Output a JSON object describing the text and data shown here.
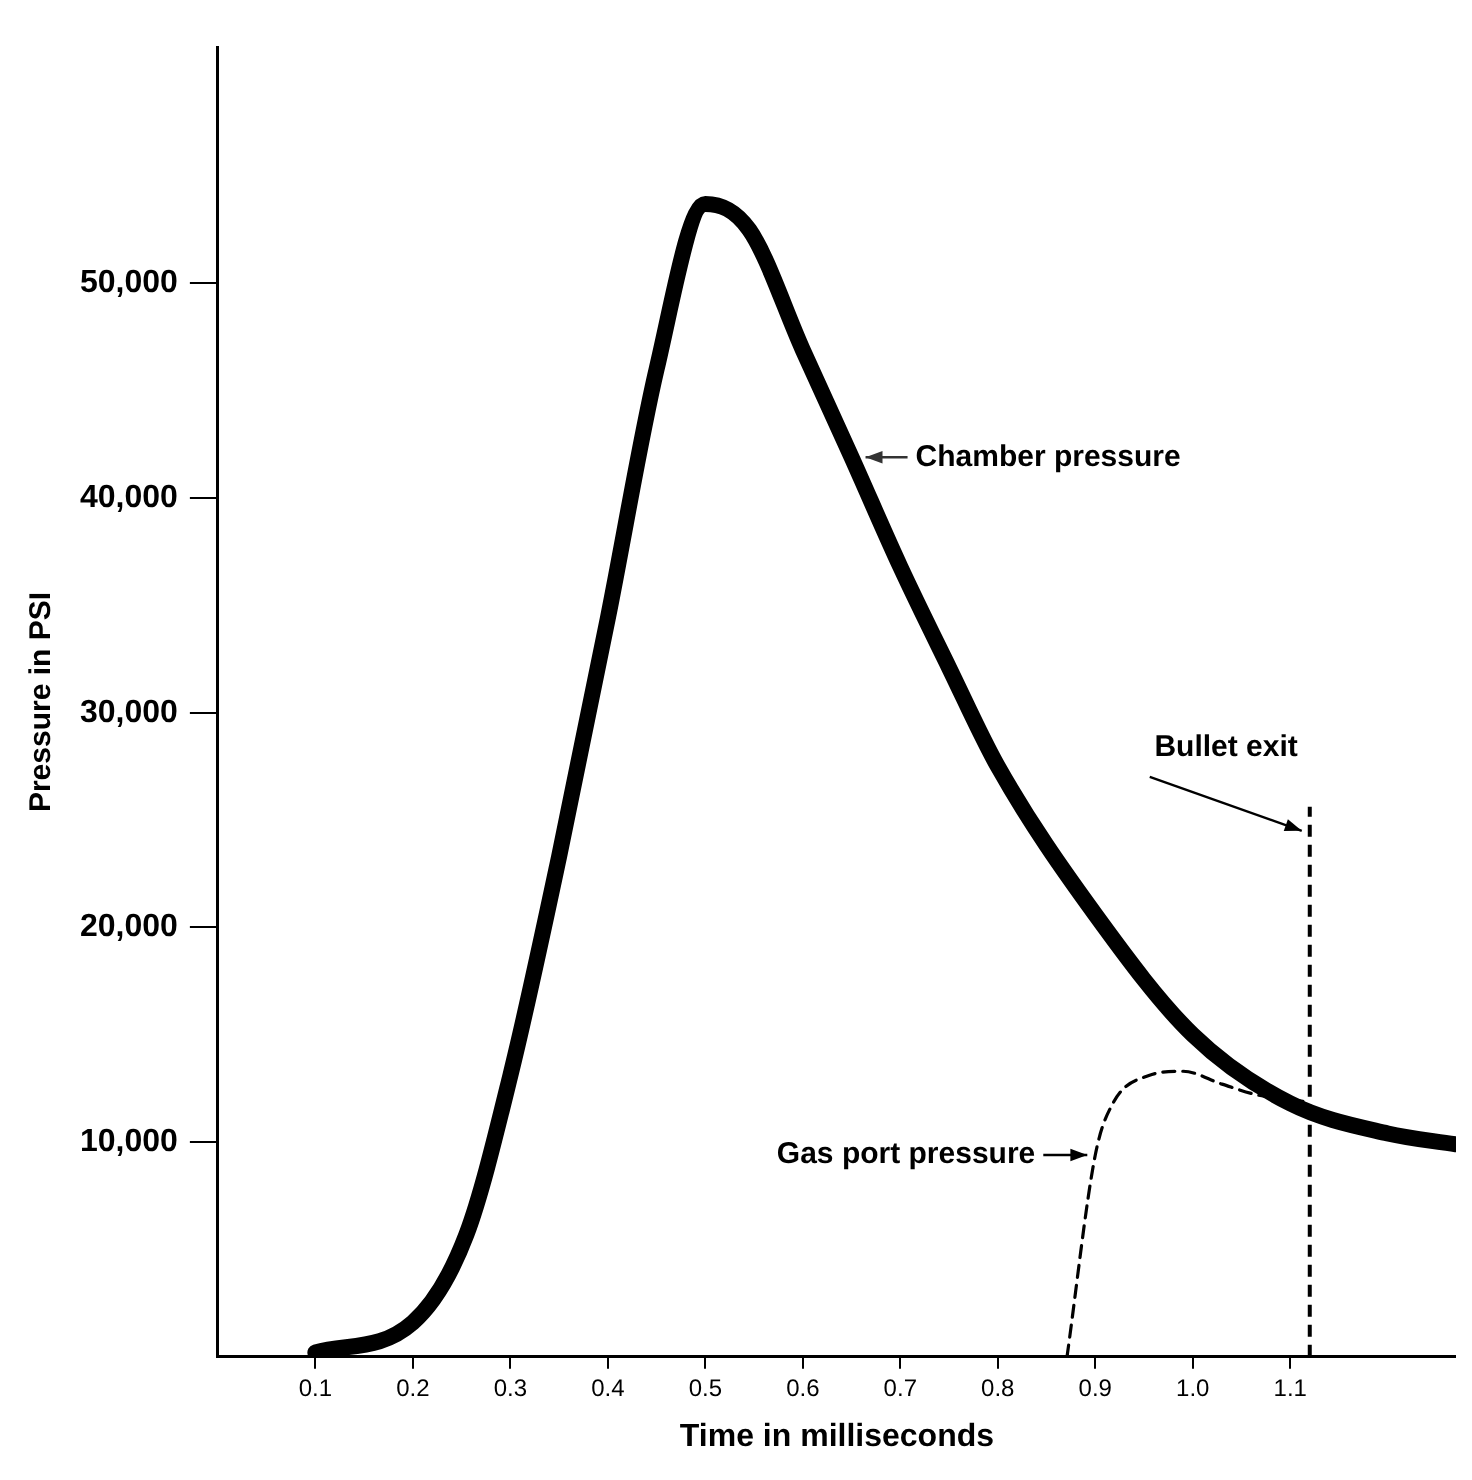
{
  "chart_data": {
    "type": "line",
    "xlabel": "Time in milliseconds",
    "ylabel": "Pressure in PSI",
    "xlim": [
      0,
      1.27
    ],
    "ylim": [
      0,
      61000
    ],
    "xticks": [
      0.1,
      0.2,
      0.3,
      0.4,
      0.5,
      0.6,
      0.7,
      0.8,
      0.9,
      {
        "value": 1.0,
        "label": "1.0"
      },
      1.1
    ],
    "yticks": [
      {
        "value": 10000,
        "label": "10,000"
      },
      {
        "value": 20000,
        "label": "20,000"
      },
      {
        "value": 30000,
        "label": "30,000"
      },
      {
        "value": 40000,
        "label": "40,000"
      },
      {
        "value": 50000,
        "label": "50,000"
      }
    ],
    "grid": false,
    "legend": false,
    "marker": "none",
    "series": [
      {
        "name": "Chamber pressure",
        "color": "#000000",
        "line_style": "solid",
        "x": [
          0.1,
          0.2,
          0.255,
          0.3,
          0.35,
          0.4,
          0.45,
          0.5,
          0.545,
          0.6,
          0.65,
          0.7,
          0.75,
          0.8,
          0.9,
          1.0,
          1.1,
          1.2,
          1.27
        ],
        "values": [
          200,
          1600,
          5700,
          13100,
          23300,
          34400,
          46000,
          53700,
          52500,
          46900,
          41900,
          36800,
          32100,
          27500,
          20600,
          15000,
          11800,
          10400,
          9900
        ]
      },
      {
        "name": "Gas port pressure",
        "color": "#000000",
        "line_style": "dashed",
        "x": [
          0.871,
          0.9,
          0.918,
          0.955,
          0.99,
          1.03,
          1.066,
          1.113
        ],
        "values": [
          0,
          9400,
          11800,
          13100,
          13300,
          12700,
          12200,
          11900
        ]
      }
    ],
    "ref_lines": [
      {
        "axis": "x",
        "value": 1.12,
        "label": "Bullet exit",
        "color": "#000000",
        "line_style": "dashed"
      }
    ]
  }
}
